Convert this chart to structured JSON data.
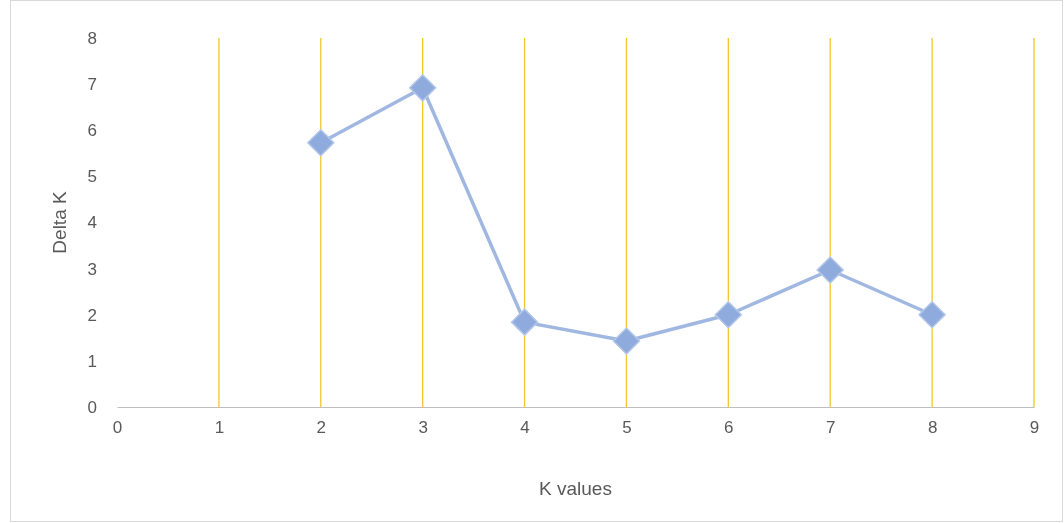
{
  "chart_data": {
    "type": "line",
    "xlabel": "K values",
    "ylabel": "Delta K",
    "x": [
      2,
      3,
      4,
      5,
      6,
      7,
      8
    ],
    "series": [
      {
        "color": "#8faadc",
        "values": [
          5.73,
          6.92,
          1.84,
          1.43,
          2.0,
          2.97,
          2.0
        ]
      }
    ],
    "xlim": [
      0,
      9
    ],
    "xticks": [
      0,
      1,
      2,
      3,
      4,
      5,
      6,
      7,
      8,
      9
    ],
    "ylim": [
      0,
      8
    ],
    "yticks": [
      0,
      1,
      2,
      3,
      4,
      5,
      6,
      7,
      8
    ],
    "grid": "x",
    "marker": "diamond",
    "line_style": "solid"
  }
}
